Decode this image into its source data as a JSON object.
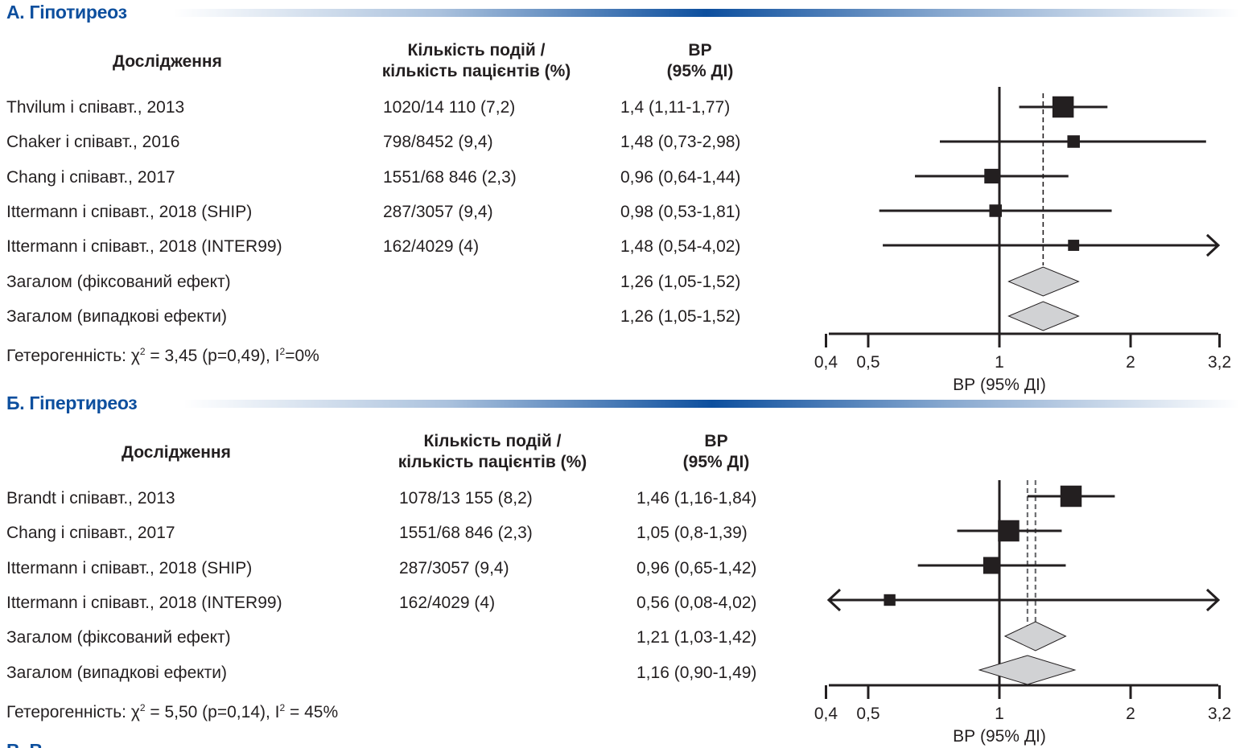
{
  "colors": {
    "heading": "#0d4f9e",
    "ink": "#231f20",
    "diamond_fill": "#d1d2d4",
    "dashed_b": "#6d6e71"
  },
  "column_headers": {
    "study": "Дослідження",
    "events_line1": "Кількість подій /",
    "events_line2": "кількість пацієнтів (%)",
    "rr_line1": "ВР",
    "rr_line2": "(95% ДІ)"
  },
  "panels": [
    {
      "heading": "А. Гіпотиреоз",
      "rows": [
        {
          "study": "Thvilum і співавт., 2013",
          "events": "1020/14 110 (7,2)",
          "rr_text": "1,4 (1,11-1,77)"
        },
        {
          "study": "Chaker і співавт., 2016",
          "events": "798/8452 (9,4)",
          "rr_text": "1,48 (0,73-2,98)"
        },
        {
          "study": "Chang і співавт., 2017",
          "events": "1551/68 846 (2,3)",
          "rr_text": "0,96 (0,64-1,44)"
        },
        {
          "study": "Ittermann і співавт., 2018 (SHIP)",
          "events": "287/3057 (9,4)",
          "rr_text": "0,98 (0,53-1,81)"
        },
        {
          "study": "Ittermann і співавт., 2018 (INTER99)",
          "events": "162/4029 (4)",
          "rr_text": "1,48 (0,54-4,02)"
        },
        {
          "study": "Загалом (фіксований ефект)",
          "events": "",
          "rr_text": "1,26 (1,05-1,52)"
        },
        {
          "study": "Загалом (випадкові ефекти)",
          "events": "",
          "rr_text": "1,26 (1,05-1,52)"
        }
      ],
      "heterogeneity": {
        "prefix": "Гетерогенність: χ",
        "mid": " = 3,45 (p=0,49), I",
        "suffix": "=0%",
        "sup": "2"
      }
    },
    {
      "heading": "Б. Гіпертиреоз",
      "rows": [
        {
          "study": "Brandt і співавт., 2013",
          "events": "1078/13 155 (8,2)",
          "rr_text": "1,46 (1,16-1,84)"
        },
        {
          "study": "Chang і співавт., 2017",
          "events": "1551/68 846 (2,3)",
          "rr_text": "1,05 (0,8-1,39)"
        },
        {
          "study": "Ittermann і співавт., 2018 (SHIP)",
          "events": "287/3057 (9,4)",
          "rr_text": "0,96 (0,65-1,42)"
        },
        {
          "study": "Ittermann і співавт., 2018 (INTER99)",
          "events": "162/4029 (4)",
          "rr_text": "0,56 (0,08-4,02)"
        },
        {
          "study": "Загалом (фіксований ефект)",
          "events": "",
          "rr_text": "1,21 (1,03-1,42)"
        },
        {
          "study": "Загалом (випадкові ефекти)",
          "events": "",
          "rr_text": "1,16 (0,90-1,49)"
        }
      ],
      "heterogeneity": {
        "prefix": "Гетерогенність: χ",
        "mid": " = 5,50 (p=0,14), I",
        "suffix": " = 45%",
        "sup": "2"
      }
    }
  ],
  "third_heading_partial": "В. В...",
  "chart_data": [
    {
      "type": "forest",
      "title": "А. Гіпотиреоз",
      "xlabel": "ВР (95% ДІ)",
      "xscale": "log",
      "xlim": [
        0.4,
        3.2
      ],
      "xticks": [
        0.4,
        0.5,
        1,
        2,
        3.2
      ],
      "xtick_labels": [
        "0,4",
        "0,5",
        "1",
        "2",
        "3,2"
      ],
      "reference_line": 1,
      "studies": [
        {
          "label": "Thvilum і співавт., 2013",
          "rr": 1.4,
          "lo": 1.11,
          "hi": 1.77,
          "weight": 3
        },
        {
          "label": "Chaker і співавт., 2016",
          "rr": 1.48,
          "lo": 0.73,
          "hi": 2.98,
          "weight": 1
        },
        {
          "label": "Chang і співавт., 2017",
          "rr": 0.96,
          "lo": 0.64,
          "hi": 1.44,
          "weight": 1.5
        },
        {
          "label": "Ittermann і співавт., 2018 (SHIP)",
          "rr": 0.98,
          "lo": 0.53,
          "hi": 1.81,
          "weight": 1
        },
        {
          "label": "Ittermann і співавт., 2018 (INTER99)",
          "rr": 1.48,
          "lo": 0.54,
          "hi": 4.02,
          "weight": 0.7
        }
      ],
      "pooled": [
        {
          "label": "Загалом (фіксований ефект)",
          "rr": 1.26,
          "lo": 1.05,
          "hi": 1.52
        },
        {
          "label": "Загалом (випадкові ефекти)",
          "rr": 1.26,
          "lo": 1.05,
          "hi": 1.52
        }
      ],
      "pooled_lines": [
        {
          "value": 1.26,
          "style": "dashed",
          "color": "#231f20"
        }
      ]
    },
    {
      "type": "forest",
      "title": "Б. Гіпертиреоз",
      "xlabel": "ВР (95% ДІ)",
      "xscale": "log",
      "xlim": [
        0.4,
        3.2
      ],
      "xticks": [
        0.4,
        0.5,
        1,
        2,
        3.2
      ],
      "xtick_labels": [
        "0,4",
        "0,5",
        "1",
        "2",
        "3,2"
      ],
      "reference_line": 1,
      "studies": [
        {
          "label": "Brandt і співавт., 2013",
          "rr": 1.46,
          "lo": 1.16,
          "hi": 1.84,
          "weight": 3
        },
        {
          "label": "Chang і співавт., 2017",
          "rr": 1.05,
          "lo": 0.8,
          "hi": 1.39,
          "weight": 3
        },
        {
          "label": "Ittermann і співавт., 2018 (SHIP)",
          "rr": 0.96,
          "lo": 0.65,
          "hi": 1.42,
          "weight": 2
        },
        {
          "label": "Ittermann і співавт., 2018 (INTER99)",
          "rr": 0.56,
          "lo": 0.08,
          "hi": 4.02,
          "weight": 0.8
        }
      ],
      "pooled": [
        {
          "label": "Загалом (фіксований ефект)",
          "rr": 1.21,
          "lo": 1.03,
          "hi": 1.42
        },
        {
          "label": "Загалом (випадкові ефекти)",
          "rr": 1.16,
          "lo": 0.9,
          "hi": 1.49
        }
      ],
      "pooled_lines": [
        {
          "value": 1.16,
          "style": "dashed",
          "color": "#6d6e71"
        },
        {
          "value": 1.21,
          "style": "dashed",
          "color": "#6d6e71"
        }
      ]
    }
  ]
}
